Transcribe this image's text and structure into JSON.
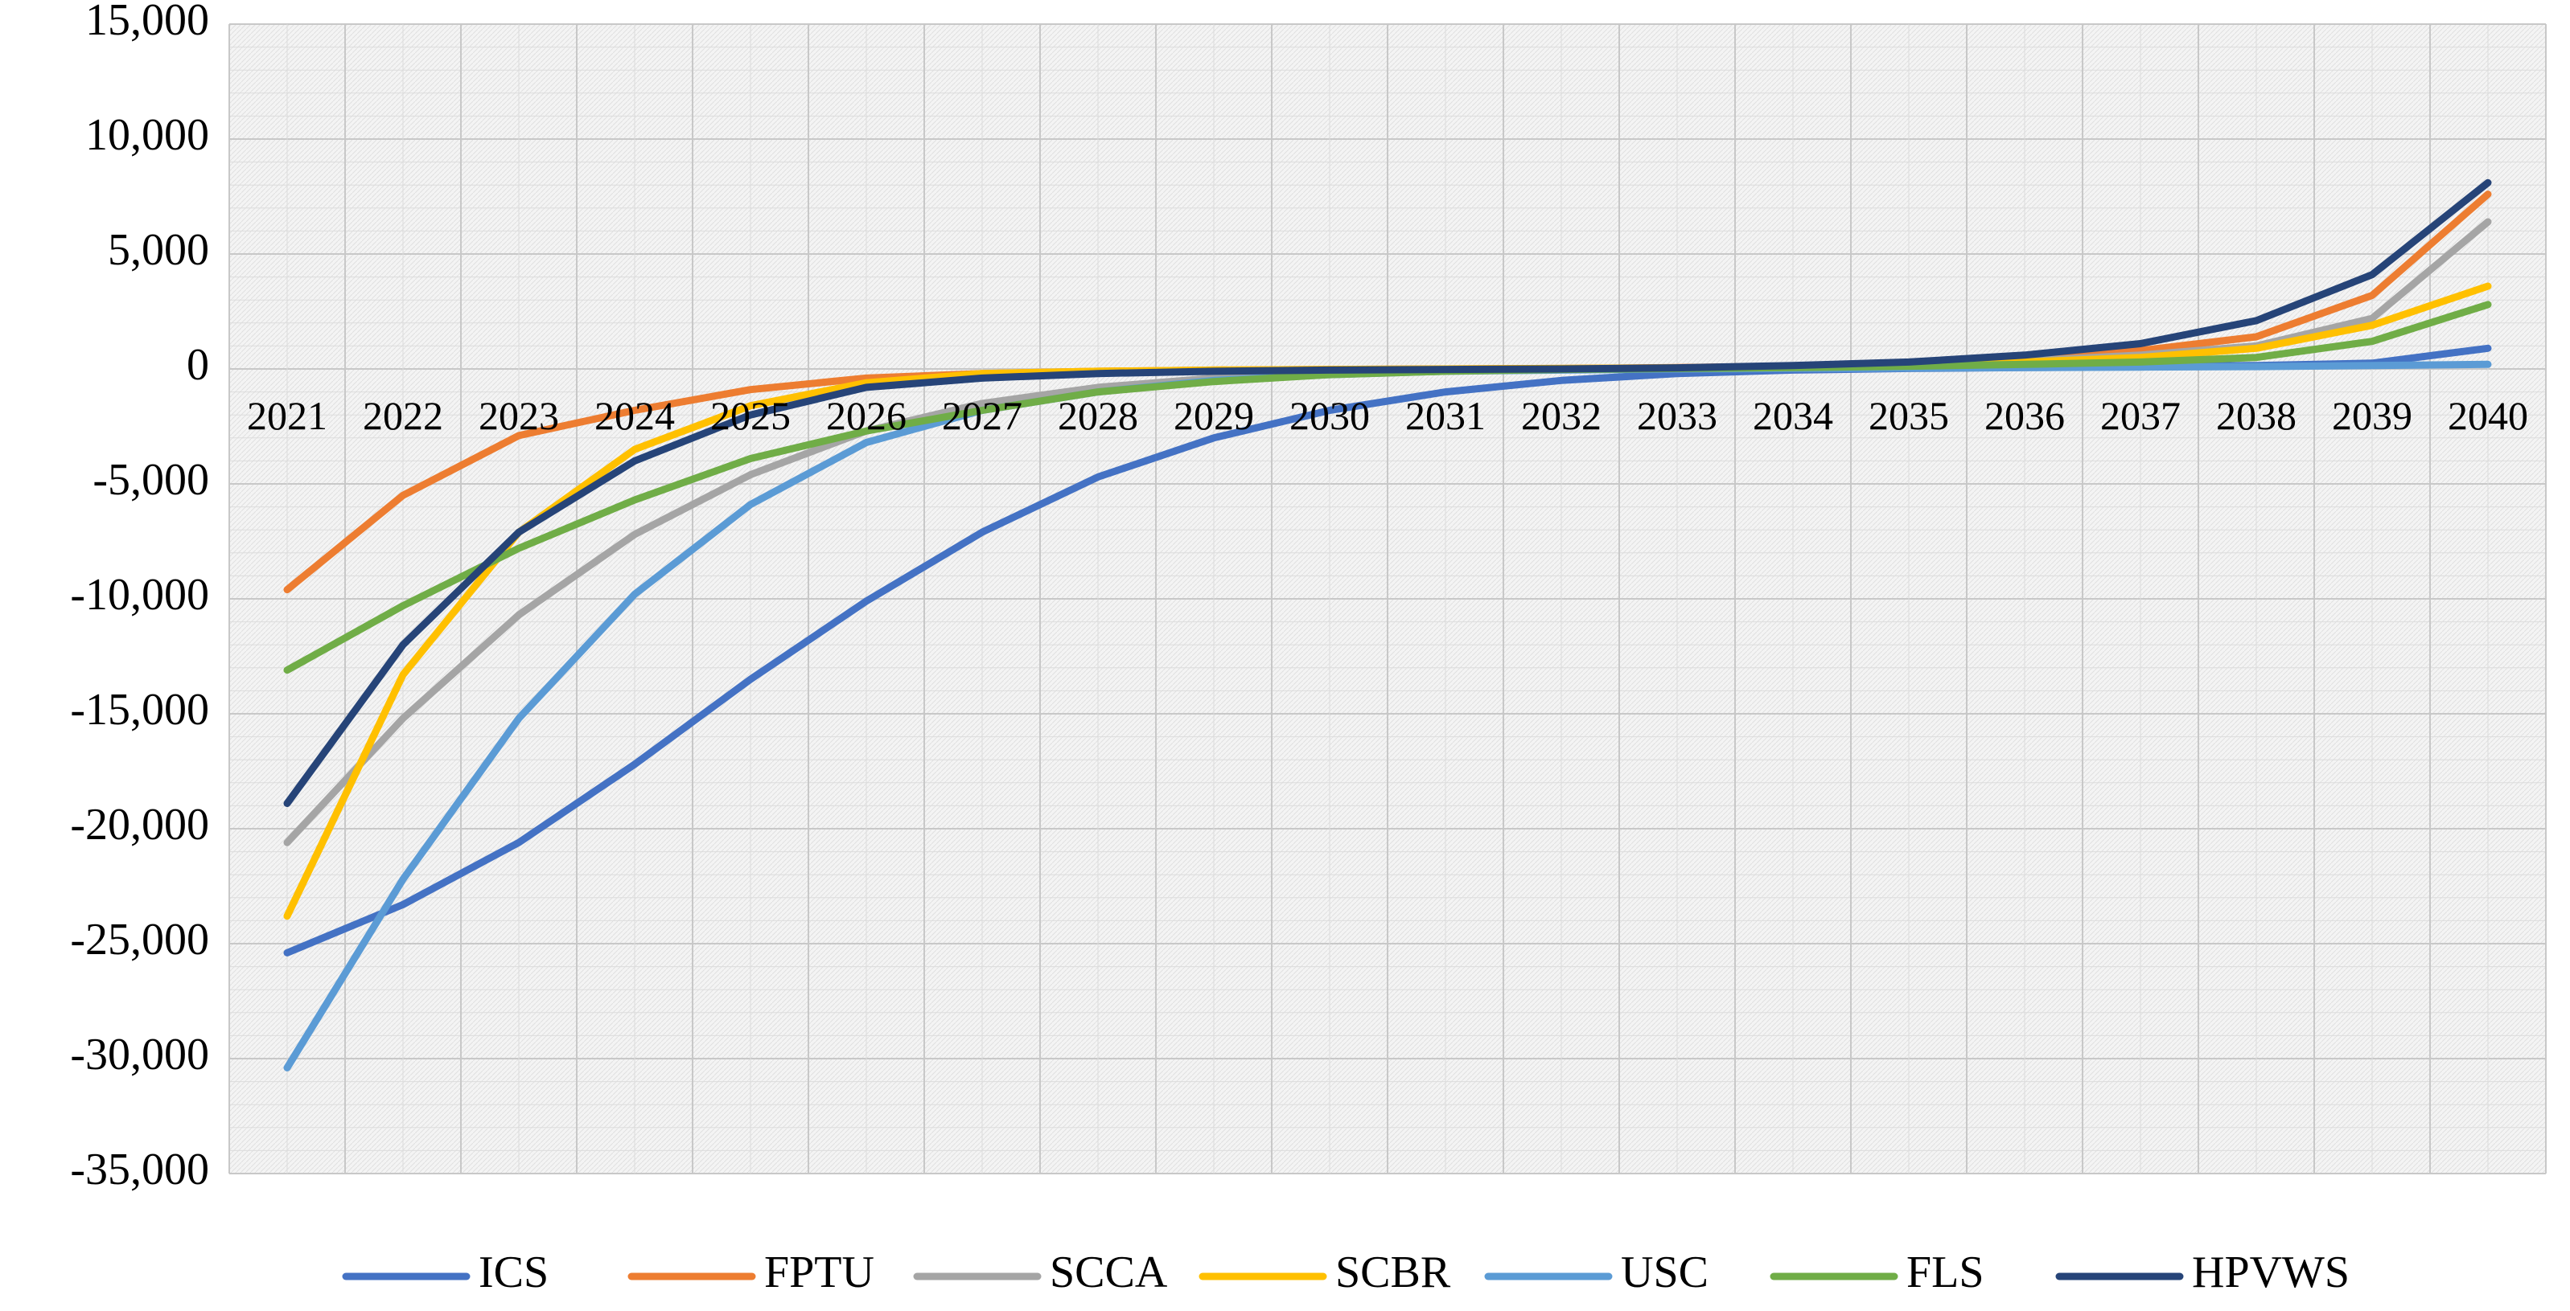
{
  "chart_data": {
    "type": "line",
    "title": "",
    "xlabel": "",
    "ylabel": "",
    "x": [
      "2021",
      "2022",
      "2023",
      "2024",
      "2025",
      "2026",
      "2027",
      "2028",
      "2029",
      "2030",
      "2031",
      "2032",
      "2033",
      "2034",
      "2035",
      "2036",
      "2037",
      "2038",
      "2039",
      "2040"
    ],
    "ylim": [
      -35000,
      15000
    ],
    "yticks": [
      15000,
      10000,
      5000,
      0,
      -5000,
      -10000,
      -15000,
      -20000,
      -25000,
      -30000,
      -35000
    ],
    "ytick_labels": [
      "15,000",
      "10,000",
      "5,000",
      "0",
      "-5,000",
      "-10,000",
      "-15,000",
      "-20,000",
      "-25,000",
      "-30,000",
      "-35,000"
    ],
    "grid": true,
    "legend_position": "bottom",
    "series": [
      {
        "name": "ICS",
        "color": "#4472C4",
        "values": [
          -25400,
          -23300,
          -20600,
          -17200,
          -13500,
          -10100,
          -7100,
          -4700,
          -3000,
          -1800,
          -1000,
          -500,
          -200,
          -50,
          20,
          60,
          100,
          150,
          250,
          900
        ]
      },
      {
        "name": "FPTU",
        "color": "#ED7D31",
        "values": [
          -9600,
          -5500,
          -2900,
          -1800,
          -900,
          -400,
          -200,
          -100,
          -50,
          -20,
          0,
          20,
          60,
          120,
          250,
          450,
          800,
          1400,
          3200,
          7600
        ]
      },
      {
        "name": "SCCA",
        "color": "#A5A5A5",
        "values": [
          -20600,
          -15200,
          -10700,
          -7200,
          -4600,
          -2700,
          -1500,
          -800,
          -400,
          -200,
          -50,
          0,
          50,
          100,
          200,
          350,
          600,
          1000,
          2200,
          6400
        ]
      },
      {
        "name": "SCBR",
        "color": "#FFC000",
        "values": [
          -23800,
          -13300,
          -7100,
          -3500,
          -1600,
          -600,
          -200,
          -100,
          -50,
          -20,
          0,
          20,
          50,
          100,
          180,
          300,
          500,
          900,
          1900,
          3600
        ]
      },
      {
        "name": "USC",
        "color": "#5B9BD5",
        "values": [
          -30400,
          -22200,
          -15200,
          -9800,
          -5900,
          -3200,
          -1800,
          -1000,
          -500,
          -250,
          -100,
          -50,
          0,
          20,
          40,
          60,
          80,
          100,
          150,
          200
        ]
      },
      {
        "name": "FLS",
        "color": "#70AD47",
        "values": [
          -13100,
          -10300,
          -7800,
          -5700,
          -3900,
          -2700,
          -1800,
          -1000,
          -550,
          -250,
          -100,
          -20,
          20,
          60,
          120,
          200,
          300,
          500,
          1200,
          2800
        ]
      },
      {
        "name": "HPVWS",
        "color": "#264478",
        "values": [
          -18900,
          -12000,
          -7100,
          -4000,
          -2000,
          -800,
          -400,
          -200,
          -100,
          -50,
          -20,
          0,
          50,
          150,
          300,
          600,
          1100,
          2100,
          4100,
          8100
        ]
      }
    ]
  }
}
